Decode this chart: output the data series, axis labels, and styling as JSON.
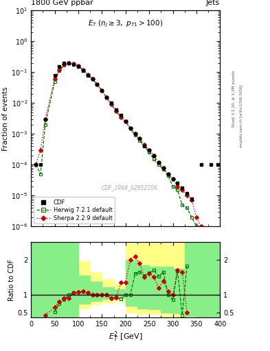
{
  "title": "1800 GeV ppbar",
  "title_right": "Jets",
  "annotation": "E_T (n_j ≥ 3, p_{T1}>100)",
  "watermark": "CDF_1994_S2952106",
  "xlabel": "$E_T^2$ [GeV]",
  "ylabel_main": "Fraction of events",
  "ylabel_ratio": "Ratio to CDF",
  "side_text": "Rivet 3.1.10, ≥ 3.3M events",
  "side_text2": "mcplots.cern.ch [arXiv:1306.3436]",
  "xlim": [
    0,
    400
  ],
  "ylim_main": [
    1e-06,
    10
  ],
  "ylim_ratio": [
    0.35,
    2.5
  ],
  "cdf_x": [
    10,
    20,
    30,
    50,
    60,
    70,
    80,
    90,
    100,
    110,
    120,
    130,
    140,
    150,
    160,
    170,
    180,
    190,
    200,
    210,
    220,
    230,
    240,
    250,
    260,
    270,
    280,
    290,
    300,
    310,
    320,
    330,
    340,
    360,
    380,
    395
  ],
  "cdf_y": [
    0.0001,
    0.0001,
    0.003,
    0.08,
    0.15,
    0.2,
    0.2,
    0.18,
    0.15,
    0.11,
    0.08,
    0.06,
    0.04,
    0.025,
    0.015,
    0.01,
    0.006,
    0.004,
    0.0025,
    0.0015,
    0.001,
    0.0007,
    0.0004,
    0.0003,
    0.0002,
    0.00012,
    8e-05,
    5e-05,
    3.5e-05,
    2.5e-05,
    1.8e-05,
    1.2e-05,
    8e-06,
    0.0001,
    0.0001,
    0.0001
  ],
  "herwig_x": [
    10,
    20,
    30,
    50,
    60,
    70,
    80,
    90,
    100,
    110,
    120,
    130,
    140,
    150,
    160,
    170,
    180,
    190,
    200,
    210,
    220,
    230,
    240,
    250,
    260,
    270,
    280,
    290,
    300,
    310,
    320,
    330,
    340,
    350,
    360,
    370,
    380,
    390
  ],
  "herwig_y": [
    0.0001,
    5e-05,
    0.002,
    0.05,
    0.11,
    0.17,
    0.2,
    0.19,
    0.16,
    0.12,
    0.085,
    0.06,
    0.04,
    0.025,
    0.015,
    0.009,
    0.0055,
    0.0035,
    0.0025,
    0.0015,
    0.0009,
    0.0006,
    0.0004,
    0.00025,
    0.00015,
    0.0001,
    7e-05,
    4.5e-05,
    2e-05,
    1.5e-05,
    5e-06,
    4e-06,
    2e-06,
    1e-06,
    4e-07,
    2e-07,
    1e-07,
    5e-08
  ],
  "sherpa_x": [
    10,
    20,
    30,
    50,
    60,
    70,
    80,
    90,
    100,
    110,
    120,
    130,
    140,
    150,
    160,
    170,
    180,
    190,
    200,
    210,
    220,
    230,
    240,
    250,
    260,
    270,
    280,
    290,
    300,
    310,
    320,
    330,
    340,
    350,
    360,
    370
  ],
  "sherpa_y": [
    0.0001,
    0.0003,
    0.003,
    0.06,
    0.12,
    0.18,
    0.2,
    0.19,
    0.16,
    0.12,
    0.085,
    0.06,
    0.04,
    0.025,
    0.015,
    0.009,
    0.0055,
    0.0035,
    0.0025,
    0.0015,
    0.001,
    0.0007,
    0.00045,
    0.0003,
    0.0002,
    0.00012,
    8e-05,
    5e-05,
    3.5e-05,
    2e-05,
    1.5e-05,
    1e-05,
    7e-06,
    2e-06,
    1e-06,
    3e-07
  ],
  "ratio_herwig_x": [
    50,
    60,
    70,
    80,
    90,
    100,
    110,
    120,
    130,
    140,
    150,
    160,
    170,
    180,
    190,
    200,
    210,
    220,
    230,
    240,
    250,
    260,
    270,
    280,
    290,
    300,
    310,
    320,
    330
  ],
  "ratio_herwig_y": [
    0.52,
    0.75,
    0.87,
    1.0,
    1.06,
    1.07,
    1.09,
    1.06,
    1.0,
    1.0,
    1.0,
    1.0,
    0.9,
    0.92,
    0.88,
    1.0,
    1.0,
    1.6,
    1.65,
    1.55,
    1.62,
    1.7,
    1.52,
    1.65,
    1.0,
    0.86,
    1.68,
    0.42,
    1.82
  ],
  "ratio_sherpa_x": [
    30,
    50,
    60,
    70,
    80,
    90,
    100,
    110,
    120,
    130,
    140,
    150,
    160,
    170,
    180,
    190,
    200,
    210,
    220,
    230,
    240,
    250,
    260,
    270,
    280,
    290,
    300,
    310,
    320,
    330
  ],
  "ratio_sherpa_y": [
    0.42,
    0.65,
    0.8,
    0.9,
    0.9,
    1.06,
    1.07,
    1.09,
    1.06,
    1.0,
    1.0,
    1.0,
    1.0,
    0.9,
    0.92,
    1.35,
    1.35,
    2.0,
    2.1,
    1.9,
    1.5,
    1.6,
    1.5,
    1.2,
    1.4,
    1.1,
    1.0,
    1.7,
    1.65,
    0.5
  ],
  "band_x_edges": [
    0,
    50,
    100,
    125,
    150,
    175,
    200,
    225,
    250,
    275,
    300,
    325,
    350,
    400
  ],
  "band_yellow_low": [
    0.35,
    0.35,
    0.62,
    0.72,
    0.78,
    0.82,
    0.5,
    0.45,
    0.45,
    0.35,
    0.35,
    0.35,
    0.35,
    0.35
  ],
  "band_yellow_high": [
    2.5,
    2.5,
    1.95,
    1.65,
    1.45,
    1.3,
    2.5,
    2.5,
    2.5,
    2.5,
    2.5,
    2.5,
    2.5,
    2.5
  ],
  "band_green_low": [
    0.35,
    0.35,
    0.75,
    0.82,
    0.88,
    0.92,
    0.68,
    0.62,
    0.6,
    0.5,
    0.48,
    0.4,
    0.35,
    0.35
  ],
  "band_green_high": [
    2.5,
    2.5,
    1.55,
    1.38,
    1.22,
    1.15,
    2.0,
    1.85,
    1.8,
    1.8,
    1.75,
    2.5,
    2.5,
    2.5
  ],
  "color_cdf": "#000000",
  "color_herwig": "#007700",
  "color_sherpa": "#cc0000",
  "color_yellow": "#ffff88",
  "color_green": "#88ee88",
  "bg_color": "#ffffff"
}
